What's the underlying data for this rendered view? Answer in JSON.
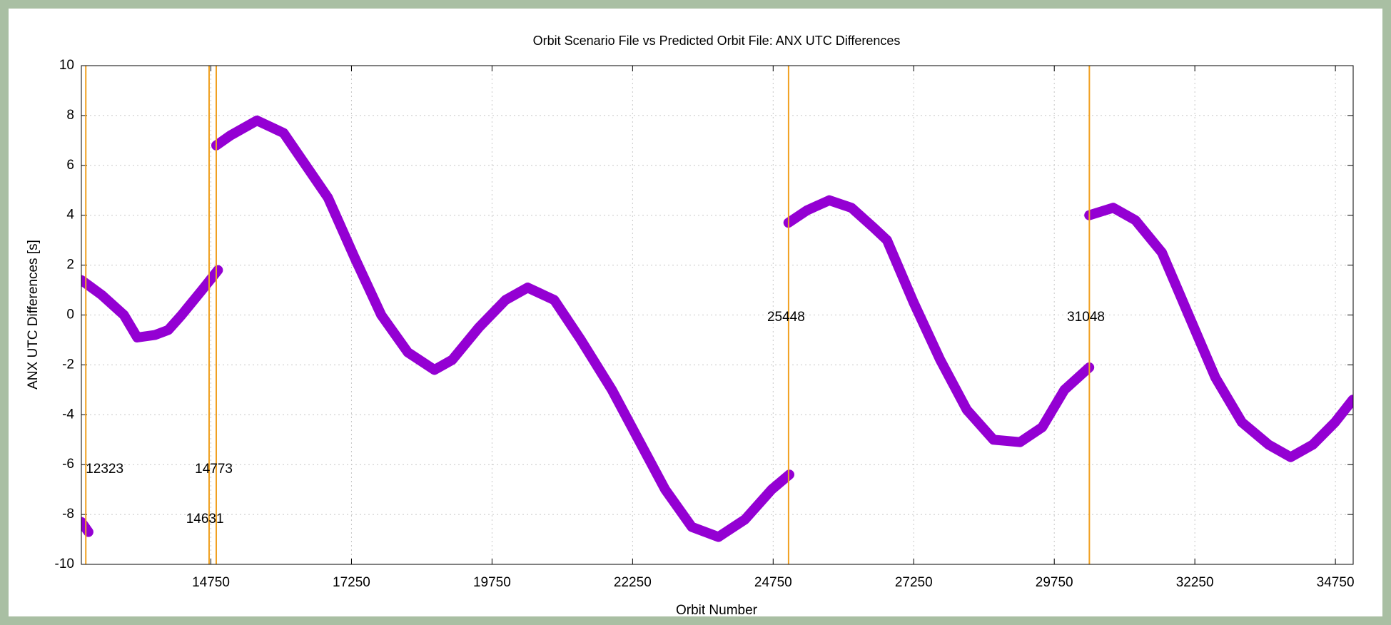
{
  "chart_data": {
    "type": "line",
    "title": "Orbit Scenario File vs Predicted Orbit File: ANX UTC Differences",
    "xlabel": "Orbit Number",
    "ylabel": "ANX UTC Differences [s]",
    "xlim": [
      12446,
      35066
    ],
    "ylim": [
      -10,
      10
    ],
    "xticks": [
      14750,
      17250,
      19750,
      22250,
      24750,
      27250,
      29750,
      32250,
      34750
    ],
    "yticks": [
      -10,
      -8,
      -6,
      -4,
      -2,
      0,
      2,
      4,
      6,
      8,
      10
    ],
    "grid": true,
    "series": [
      {
        "color": "#9400d3",
        "x": [
          12446,
          12572,
          null,
          12446,
          12809,
          13203,
          13440,
          13756,
          13992,
          14229,
          14592,
          14876,
          null,
          14845,
          15097,
          15570,
          16044,
          16438,
          16833,
          17306,
          17780,
          18253,
          18726,
          19042,
          19516,
          19990,
          20383,
          20857,
          21330,
          21882,
          22356,
          22829,
          23303,
          23776,
          24249,
          24723,
          25038,
          null,
          25022,
          25354,
          25749,
          26143,
          26538,
          26774,
          27248,
          27721,
          28194,
          28668,
          29141,
          29536,
          29930,
          30372,
          null,
          30372,
          30798,
          31193,
          31666,
          32139,
          32613,
          33086,
          33560,
          33954,
          34349,
          34743,
          35059
        ],
        "values": [
          -8.3,
          -8.7,
          null,
          1.4,
          0.8,
          0.0,
          -0.9,
          -0.8,
          -0.6,
          0.0,
          1.0,
          1.8,
          null,
          6.8,
          7.2,
          7.8,
          7.3,
          6.0,
          4.7,
          2.3,
          0.0,
          -1.5,
          -2.2,
          -1.8,
          -0.5,
          0.6,
          1.1,
          0.6,
          -1.0,
          -3.0,
          -5.0,
          -7.0,
          -8.5,
          -8.9,
          -8.2,
          -7.0,
          -6.4,
          null,
          3.7,
          4.2,
          4.6,
          4.3,
          3.5,
          3.0,
          0.5,
          -1.8,
          -3.8,
          -5.0,
          -5.1,
          -4.5,
          -3.0,
          -2.1,
          null,
          4.0,
          4.3,
          3.8,
          2.5,
          0.0,
          -2.5,
          -4.3,
          -5.2,
          -5.7,
          -5.2,
          -4.3,
          -3.4
        ]
      }
    ],
    "vlines": {
      "color": "#f0a020",
      "x": [
        12525,
        14718,
        14845,
        25024,
        30374
      ]
    },
    "annotations": [
      {
        "text": "12323",
        "x": 12525,
        "y": -6.2
      },
      {
        "text": "14773",
        "x": 14466,
        "y": -6.2
      },
      {
        "text": "14631",
        "x": 14308,
        "y": -8.2
      },
      {
        "text": "25448",
        "x": 24644,
        "y": -0.1
      },
      {
        "text": "31048",
        "x": 29978,
        "y": -0.1
      }
    ]
  }
}
